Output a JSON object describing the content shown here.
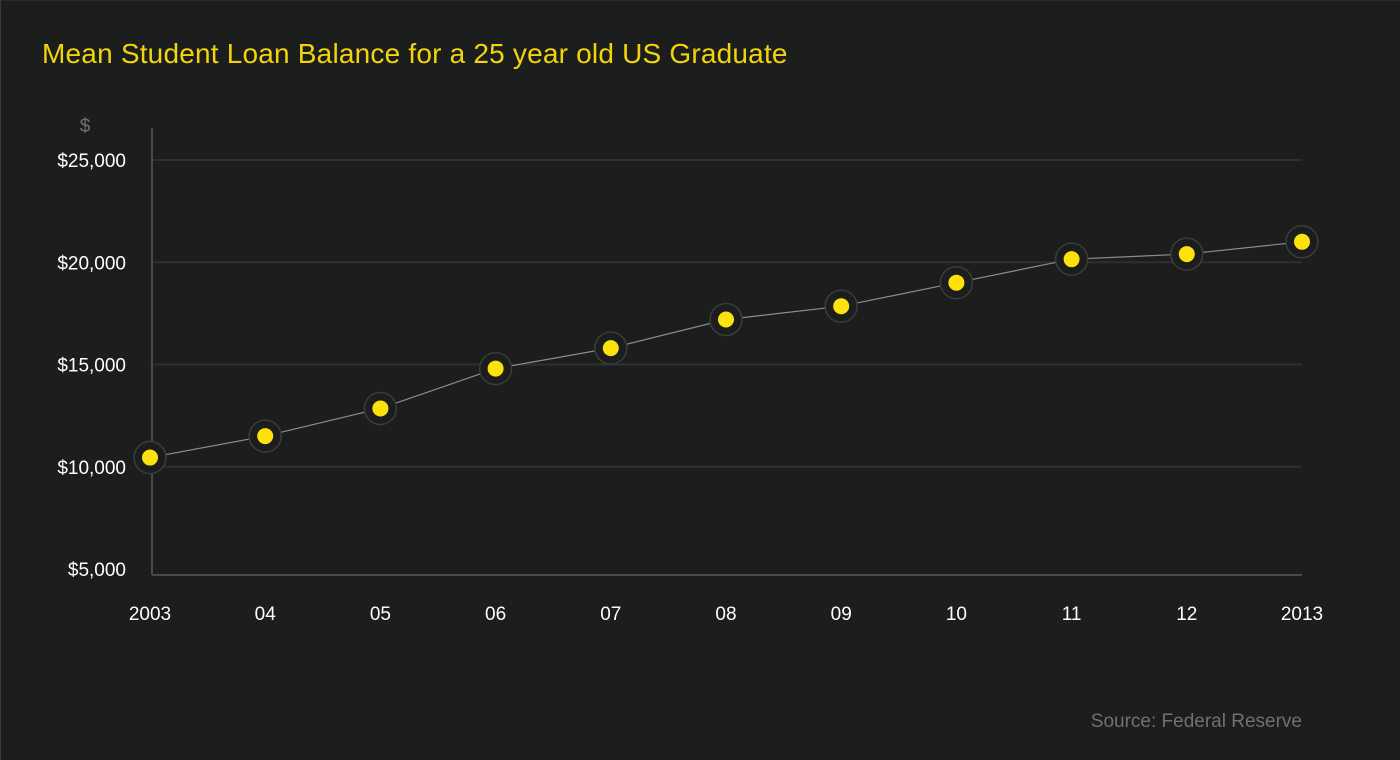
{
  "title": "Mean Student Loan Balance for a 25 year old US Graduate",
  "source": "Source: Federal Reserve",
  "colors": {
    "background": "#1c1d1d",
    "title": "#f2d40c",
    "marker": "#ffe20a",
    "line": "#8c8c8c",
    "grid": "#2e2f2f",
    "axis": "#4a4a4a",
    "source": "#6f7070"
  },
  "chart_data": {
    "type": "line",
    "title": "Mean Student Loan Balance for a 25 year old US Graduate",
    "ylabel": "$",
    "xlabel": "",
    "x": [
      2003,
      2004,
      2005,
      2006,
      2007,
      2008,
      2009,
      2010,
      2011,
      2012,
      2013
    ],
    "x_tick_labels": [
      "2003",
      "04",
      "05",
      "06",
      "07",
      "08",
      "09",
      "10",
      "11",
      "12",
      "2013"
    ],
    "ylim": [
      5000,
      26500
    ],
    "y_ticks": [
      5000,
      10000,
      15000,
      20000,
      25000
    ],
    "y_tick_labels": [
      "$5,000",
      "$10,000",
      "$15,000",
      "$20,000",
      "$25,000"
    ],
    "grid": true,
    "series": [
      {
        "values": [
          10450,
          11500,
          12850,
          14800,
          15800,
          17200,
          17850,
          19000,
          20150,
          20400,
          21000
        ]
      }
    ]
  }
}
